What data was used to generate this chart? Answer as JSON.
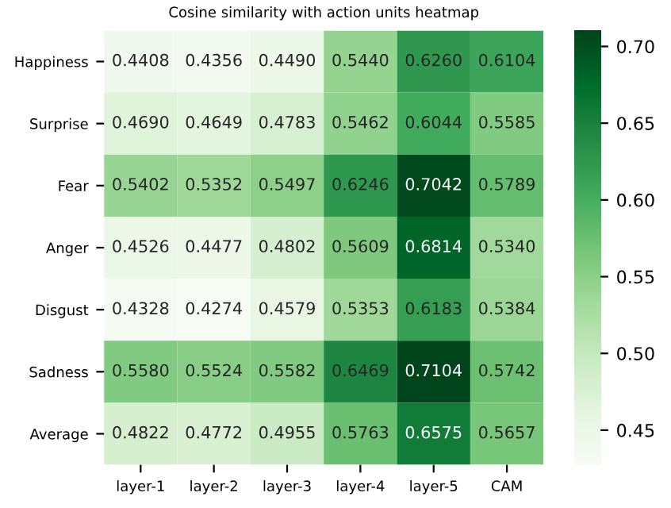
{
  "chart_data": {
    "type": "heatmap",
    "title": "Cosine similarity with action units heatmap",
    "categories": [
      "layer-1",
      "layer-2",
      "layer-3",
      "layer-4",
      "layer-5",
      "CAM"
    ],
    "y_categories": [
      "Happiness",
      "Surprise",
      "Fear",
      "Anger",
      "Disgust",
      "Sadness",
      "Average"
    ],
    "cells": [
      [
        0.4408,
        0.4356,
        0.449,
        0.544,
        0.626,
        0.6104
      ],
      [
        0.469,
        0.4649,
        0.4783,
        0.5462,
        0.6044,
        0.5585
      ],
      [
        0.5402,
        0.5352,
        0.5497,
        0.6246,
        0.7042,
        0.5789
      ],
      [
        0.4526,
        0.4477,
        0.4802,
        0.5609,
        0.6814,
        0.534
      ],
      [
        0.4328,
        0.4274,
        0.4579,
        0.5353,
        0.6183,
        0.5384
      ],
      [
        0.558,
        0.5524,
        0.5582,
        0.6469,
        0.7104,
        0.5742
      ],
      [
        0.4822,
        0.4772,
        0.4955,
        0.5763,
        0.6575,
        0.5657
      ]
    ],
    "cell_labels": [
      [
        "0.4408",
        "0.4356",
        "0.4490",
        "0.5440",
        "0.6260",
        "0.6104"
      ],
      [
        "0.4690",
        "0.4649",
        "0.4783",
        "0.5462",
        "0.6044",
        "0.5585"
      ],
      [
        "0.5402",
        "0.5352",
        "0.5497",
        "0.6246",
        "0.7042",
        "0.5789"
      ],
      [
        "0.4526",
        "0.4477",
        "0.4802",
        "0.5609",
        "0.6814",
        "0.5340"
      ],
      [
        "0.4328",
        "0.4274",
        "0.4579",
        "0.5353",
        "0.6183",
        "0.5384"
      ],
      [
        "0.5580",
        "0.5524",
        "0.5582",
        "0.6469",
        "0.7104",
        "0.5742"
      ],
      [
        "0.4822",
        "0.4772",
        "0.4955",
        "0.5763",
        "0.6575",
        "0.5657"
      ]
    ],
    "clim": [
      0.4274,
      0.7104
    ],
    "cticks": [
      0.45,
      {
        "value": 0.5,
        "label": "0.50"
      },
      0.55,
      {
        "value": 0.6,
        "label": "0.60"
      },
      0.65,
      {
        "value": 0.7,
        "label": "0.70"
      }
    ]
  }
}
